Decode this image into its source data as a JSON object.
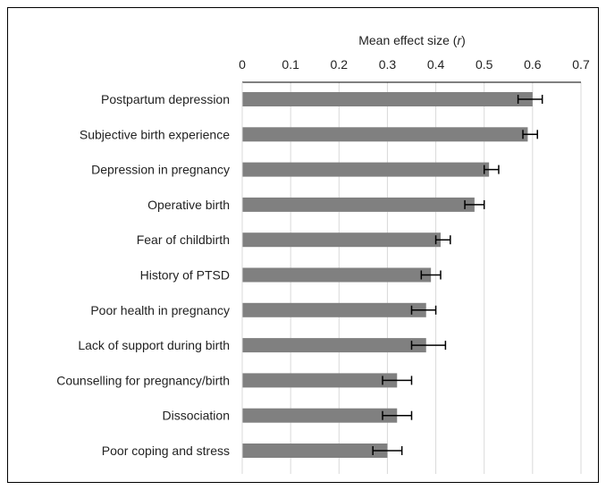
{
  "chart_data": {
    "type": "bar",
    "orientation": "horizontal",
    "xlabel_prefix": "Mean effect size (",
    "xlabel_var": "r",
    "xlabel_suffix": ")",
    "xaxis_position": "top",
    "xlim": [
      0,
      0.7
    ],
    "xticks": [
      0,
      0.1,
      0.2,
      0.3,
      0.4,
      0.5,
      0.6,
      0.7
    ],
    "xtick_labels": [
      "0",
      "0.1",
      "0.2",
      "0.3",
      "0.4",
      "0.5",
      "0.6",
      "0.7"
    ],
    "grid": true,
    "bar_color": "#808080",
    "error_bar_color": "#000000",
    "categories": [
      "Postpartum depression",
      "Subjective birth experience",
      "Depression in pregnancy",
      "Operative birth",
      "Fear of childbirth",
      "History of PTSD",
      "Poor health in pregnancy",
      "Lack of support during birth",
      "Counselling for pregnancy/birth",
      "Dissociation",
      "Poor coping and stress"
    ],
    "values": [
      0.6,
      0.59,
      0.51,
      0.48,
      0.41,
      0.39,
      0.38,
      0.38,
      0.32,
      0.32,
      0.3
    ],
    "error_low": [
      0.57,
      0.58,
      0.5,
      0.46,
      0.4,
      0.37,
      0.35,
      0.35,
      0.29,
      0.29,
      0.27
    ],
    "error_high": [
      0.62,
      0.61,
      0.53,
      0.5,
      0.43,
      0.41,
      0.4,
      0.42,
      0.35,
      0.35,
      0.33
    ]
  }
}
